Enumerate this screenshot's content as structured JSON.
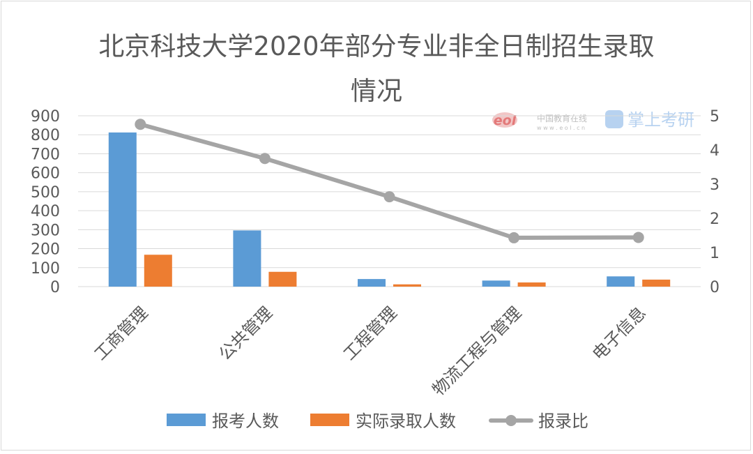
{
  "watermark": {
    "eol_logo_text": "eol",
    "eol_cn_name": "中国教育在线",
    "eol_url": "w w w . e o l . c n",
    "app_name": "掌上考研"
  },
  "chart_data": {
    "type": "bar",
    "title_line1": "北京科技大学2020年部分专业非全日制招生录取",
    "title_line2": "情况",
    "categories": [
      "工商管理",
      "公共管理",
      "工程管理",
      "物流工程与管理",
      "电子信息"
    ],
    "series": [
      {
        "name": "报考人数",
        "type": "bar",
        "axis": "left",
        "color": "#5b9bd5",
        "values": [
          812,
          296,
          40,
          32,
          54
        ]
      },
      {
        "name": "实际录取人数",
        "type": "bar",
        "axis": "left",
        "color": "#ed7d31",
        "values": [
          168,
          78,
          12,
          22,
          37
        ]
      },
      {
        "name": "报录比",
        "type": "line",
        "axis": "right",
        "color": "#a5a5a5",
        "values": [
          4.75,
          3.75,
          2.63,
          1.43,
          1.44
        ]
      }
    ],
    "y_left": {
      "min": 0,
      "max": 900,
      "step": 100,
      "ticks": [
        "0",
        "100",
        "200",
        "300",
        "400",
        "500",
        "600",
        "700",
        "800",
        "900"
      ]
    },
    "y_right": {
      "min": 0,
      "max": 5,
      "step": 1,
      "ticks": [
        "0",
        "1",
        "2",
        "3",
        "4",
        "5"
      ]
    },
    "grid": true,
    "legend_position": "bottom"
  }
}
